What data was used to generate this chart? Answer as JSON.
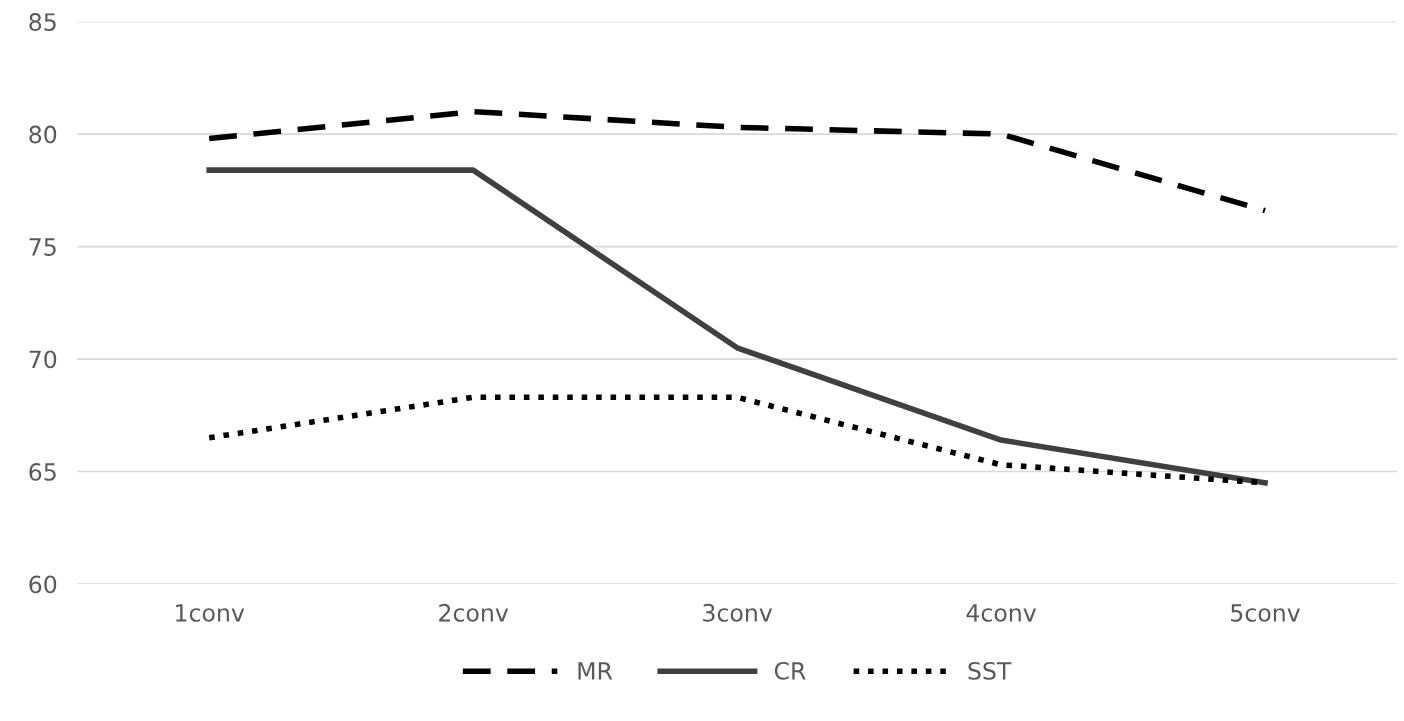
{
  "chart_data": {
    "type": "line",
    "categories": [
      "1conv",
      "2conv",
      "3conv",
      "4conv",
      "5conv"
    ],
    "series": [
      {
        "name": "MR",
        "color": "#000000",
        "line_style": "dashed",
        "values": [
          79.8,
          81.0,
          80.3,
          80.0,
          76.6
        ]
      },
      {
        "name": "CR",
        "color": "#404040",
        "line_style": "solid",
        "values": [
          78.4,
          78.4,
          70.5,
          66.4,
          64.5
        ]
      },
      {
        "name": "SST",
        "color": "#000000",
        "line_style": "dotted",
        "values": [
          66.5,
          68.3,
          68.3,
          65.3,
          64.5
        ]
      }
    ],
    "ylim": [
      60,
      85
    ],
    "yticks": [
      60,
      65,
      70,
      75,
      80,
      85
    ],
    "grid": "y",
    "legend": "bottom",
    "marker": "none"
  }
}
